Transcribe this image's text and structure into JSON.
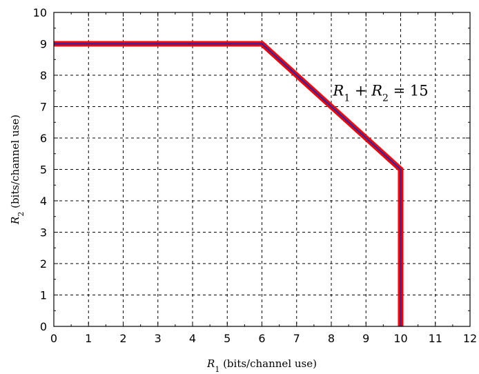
{
  "chart_data": {
    "type": "line",
    "title": "",
    "xlabel": {
      "var": "R",
      "sub": "1",
      "text": " (bits/channel use)"
    },
    "ylabel": {
      "var": "R",
      "sub": "2",
      "text": " (bits/channel use)"
    },
    "xlim": [
      0,
      12
    ],
    "ylim": [
      0,
      10
    ],
    "xticks": [
      "0",
      "1",
      "2",
      "3",
      "4",
      "5",
      "6",
      "7",
      "8",
      "9",
      "10",
      "11",
      "12"
    ],
    "yticks": [
      "0",
      "1",
      "2",
      "3",
      "4",
      "5",
      "6",
      "7",
      "8",
      "9",
      "10"
    ],
    "grid": true,
    "grid_style": "dashed",
    "series": [
      {
        "x": [
          0,
          6,
          10,
          10
        ],
        "y": [
          9,
          9,
          5,
          0
        ],
        "outer_color": "#ff0000",
        "inner_color": "#2a2aa8"
      }
    ],
    "annotations": [
      {
        "text": "R1 + R2 = 15",
        "x": 8.05,
        "y": 7.35
      }
    ]
  },
  "annotation": {
    "r1_var": "R",
    "r1_sub": "1",
    "plus": " + ",
    "r2_var": "R",
    "r2_sub": "2",
    "equals": " = 15"
  }
}
